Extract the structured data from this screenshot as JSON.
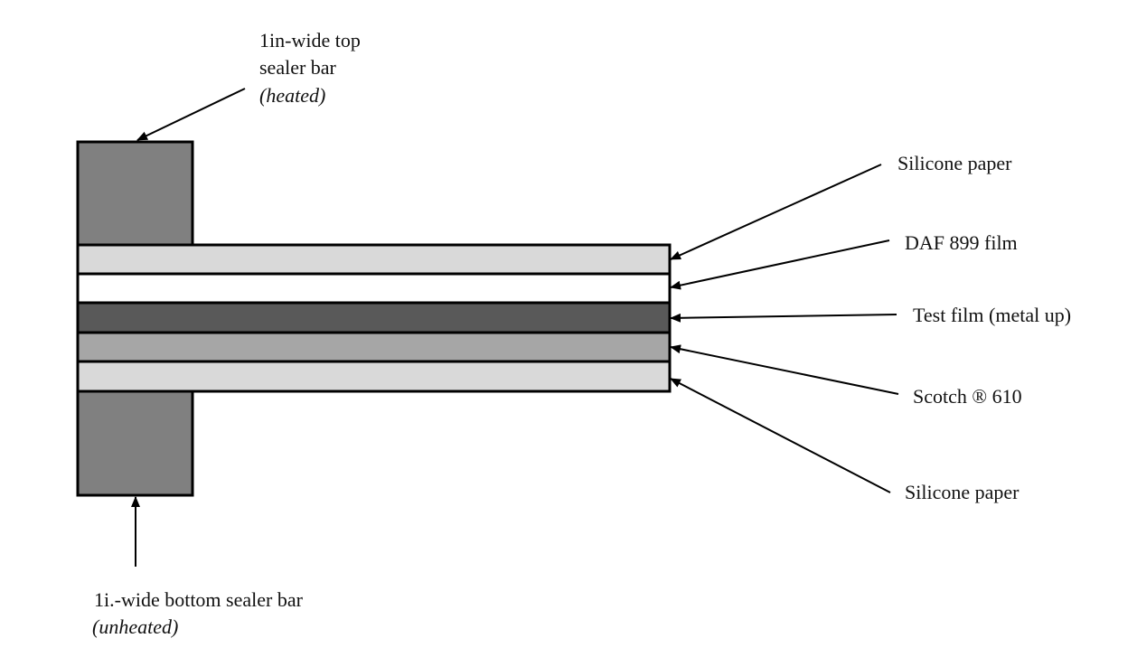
{
  "colors": {
    "sealer_bar": "#808080",
    "silicone_paper": "#d9d9d9",
    "daf_film": "#ffffff",
    "test_film": "#595959",
    "scotch_tape": "#a6a6a6",
    "outline": "#000000"
  },
  "top_bar": {
    "line1": "1in-wide top",
    "line2": "sealer bar",
    "line3": "(heated)"
  },
  "bottom_bar": {
    "line1": "1i.-wide bottom sealer bar",
    "line2": "(unheated)"
  },
  "layers": [
    {
      "label": "Silicone paper"
    },
    {
      "label": "DAF 899 film"
    },
    {
      "label": "Test film (metal up)"
    },
    {
      "label": "Scotch ® 610"
    },
    {
      "label": "Silicone paper"
    }
  ]
}
